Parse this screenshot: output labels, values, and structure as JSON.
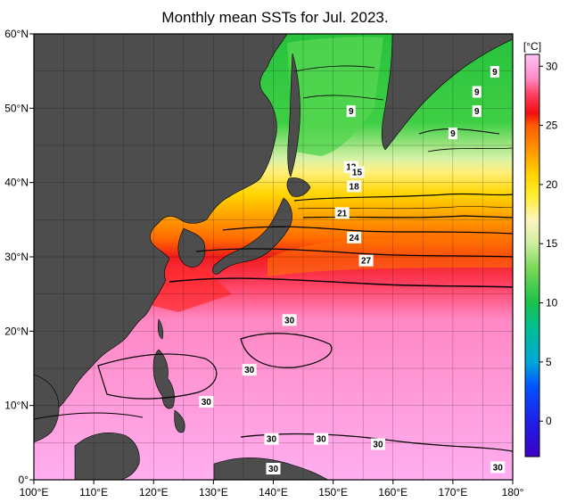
{
  "title": "Monthly mean SSTs for Jul. 2023.",
  "map": {
    "lon_range": [
      100,
      180
    ],
    "lat_range": [
      0,
      60
    ],
    "lon_ticks": [
      "100°E",
      "110°E",
      "120°E",
      "130°E",
      "140°E",
      "150°E",
      "160°E",
      "170°E",
      "180°"
    ],
    "lat_ticks": [
      "60°N",
      "50°N",
      "40°N",
      "30°N",
      "20°N",
      "10°N",
      "0°"
    ],
    "land_color": "#4d4d4d",
    "grid": true
  },
  "colorbar": {
    "unit": "[°C]",
    "range": [
      -3,
      31
    ],
    "ticks": [
      "30",
      "25",
      "20",
      "15",
      "10",
      "5",
      "0"
    ],
    "tick_values": [
      30,
      25,
      20,
      15,
      10,
      5,
      0
    ],
    "stops": [
      {
        "v": -3,
        "c": "#3a00c8"
      },
      {
        "v": 0,
        "c": "#1f1fe6"
      },
      {
        "v": 3,
        "c": "#0055ff"
      },
      {
        "v": 5,
        "c": "#00a8d8"
      },
      {
        "v": 8,
        "c": "#00c090"
      },
      {
        "v": 10,
        "c": "#19c24a"
      },
      {
        "v": 13,
        "c": "#7ed858"
      },
      {
        "v": 15,
        "c": "#cfeea0"
      },
      {
        "v": 17,
        "c": "#fff4c0"
      },
      {
        "v": 19,
        "c": "#ffee30"
      },
      {
        "v": 21,
        "c": "#ffd000"
      },
      {
        "v": 23,
        "c": "#ff9400"
      },
      {
        "v": 25,
        "c": "#ff5a00"
      },
      {
        "v": 26,
        "c": "#f01010"
      },
      {
        "v": 27.5,
        "c": "#ff3a5a"
      },
      {
        "v": 29,
        "c": "#ff8cc8"
      },
      {
        "v": 31,
        "c": "#ffc4f4"
      }
    ]
  },
  "isotherm_labels": [
    {
      "text": "9",
      "lon": 177,
      "lat": 54.9
    },
    {
      "text": "9",
      "lon": 174,
      "lat": 52.2
    },
    {
      "text": "9",
      "lon": 174,
      "lat": 49.6
    },
    {
      "text": "9",
      "lon": 170,
      "lat": 46.6
    },
    {
      "text": "9",
      "lon": 153,
      "lat": 49.6
    },
    {
      "text": "12",
      "lon": 153,
      "lat": 42.1
    },
    {
      "text": "15",
      "lon": 154,
      "lat": 41.4
    },
    {
      "text": "18",
      "lon": 153.5,
      "lat": 39.5
    },
    {
      "text": "21",
      "lon": 151.5,
      "lat": 35.9
    },
    {
      "text": "24",
      "lon": 153.5,
      "lat": 32.6
    },
    {
      "text": "27",
      "lon": 155.5,
      "lat": 29.5
    },
    {
      "text": "30",
      "lon": 142.7,
      "lat": 21.5
    },
    {
      "text": "30",
      "lon": 136,
      "lat": 14.8
    },
    {
      "text": "30",
      "lon": 128.8,
      "lat": 10.5
    },
    {
      "text": "30",
      "lon": 139.7,
      "lat": 5.5
    },
    {
      "text": "30",
      "lon": 148,
      "lat": 5.5
    },
    {
      "text": "30",
      "lon": 157.5,
      "lat": 4.8
    },
    {
      "text": "30",
      "lon": 140,
      "lat": 1.5
    },
    {
      "text": "30",
      "lon": 177.5,
      "lat": 1.7
    }
  ]
}
